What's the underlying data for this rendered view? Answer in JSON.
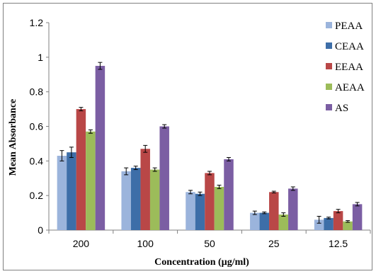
{
  "chart_data": {
    "type": "bar",
    "title": "",
    "xlabel": "Concentration  (µg/ml)",
    "ylabel": "Mean Absorbance",
    "categories": [
      "200",
      "100",
      "50",
      "25",
      "12.5"
    ],
    "ylim": [
      0,
      1.2
    ],
    "yticks": [
      "0",
      "0.2",
      "0.4",
      "0.6",
      "0.8",
      "1",
      "1.2"
    ],
    "grid": false,
    "legend_position": "right",
    "error_bars": true,
    "series": [
      {
        "name": "PEAA",
        "color": "#9bb4dc",
        "values": [
          0.43,
          0.34,
          0.22,
          0.1,
          0.06
        ],
        "errors": [
          0.03,
          0.02,
          0.01,
          0.01,
          0.02
        ]
      },
      {
        "name": "CEAA",
        "color": "#3d6ea8",
        "values": [
          0.45,
          0.36,
          0.21,
          0.1,
          0.07
        ],
        "errors": [
          0.03,
          0.01,
          0.01,
          0.005,
          0.005
        ]
      },
      {
        "name": "EEAA",
        "color": "#b94747",
        "values": [
          0.7,
          0.47,
          0.33,
          0.22,
          0.11
        ],
        "errors": [
          0.01,
          0.02,
          0.01,
          0.005,
          0.01
        ]
      },
      {
        "name": "AEAA",
        "color": "#9cbc5a",
        "values": [
          0.57,
          0.35,
          0.25,
          0.09,
          0.05
        ],
        "errors": [
          0.01,
          0.01,
          0.01,
          0.01,
          0.005
        ]
      },
      {
        "name": "AS",
        "color": "#7b5ea3",
        "values": [
          0.95,
          0.6,
          0.41,
          0.24,
          0.15
        ],
        "errors": [
          0.02,
          0.01,
          0.01,
          0.01,
          0.01
        ]
      }
    ]
  }
}
